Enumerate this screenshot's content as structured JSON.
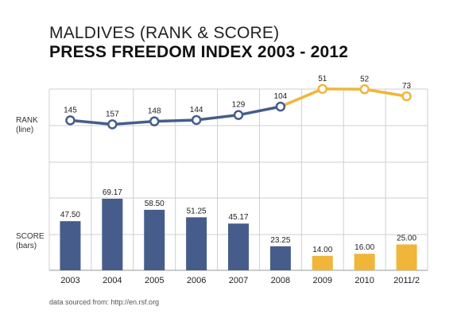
{
  "titles": {
    "line1": "MALDIVES (RANK & SCORE)",
    "line2": "PRESS FREEDOM INDEX 2003 - 2012"
  },
  "labels": {
    "rank_title": "RANK",
    "rank_sub": "(line)",
    "score_title": "SCORE",
    "score_sub": "(bars)"
  },
  "source": "data sourced from: http://en.rsf.org",
  "colors": {
    "blue": "#465d8b",
    "yellow": "#efb63a",
    "grid": "#cfcfcf"
  },
  "chart_data": {
    "type": "bar",
    "categories": [
      "2003",
      "2004",
      "2005",
      "2006",
      "2007",
      "2008",
      "2009",
      "2010",
      "2011/2"
    ],
    "series": [
      {
        "name": "SCORE",
        "type": "bar",
        "values": [
          47.5,
          69.17,
          58.5,
          51.25,
          45.17,
          23.25,
          14.0,
          16.0,
          25.0
        ],
        "labels": [
          "47.50",
          "69.17",
          "58.50",
          "51.25",
          "45.17",
          "23.25",
          "14.00",
          "16.00",
          "25.00"
        ],
        "highlight_from_index": 6
      },
      {
        "name": "RANK",
        "type": "line",
        "values": [
          145,
          157,
          148,
          144,
          129,
          104,
          51,
          52,
          73
        ],
        "labels": [
          "145",
          "157",
          "148",
          "144",
          "129",
          "104",
          "51",
          "52",
          "73"
        ],
        "highlight_from_index": 5
      }
    ],
    "grid": true
  }
}
